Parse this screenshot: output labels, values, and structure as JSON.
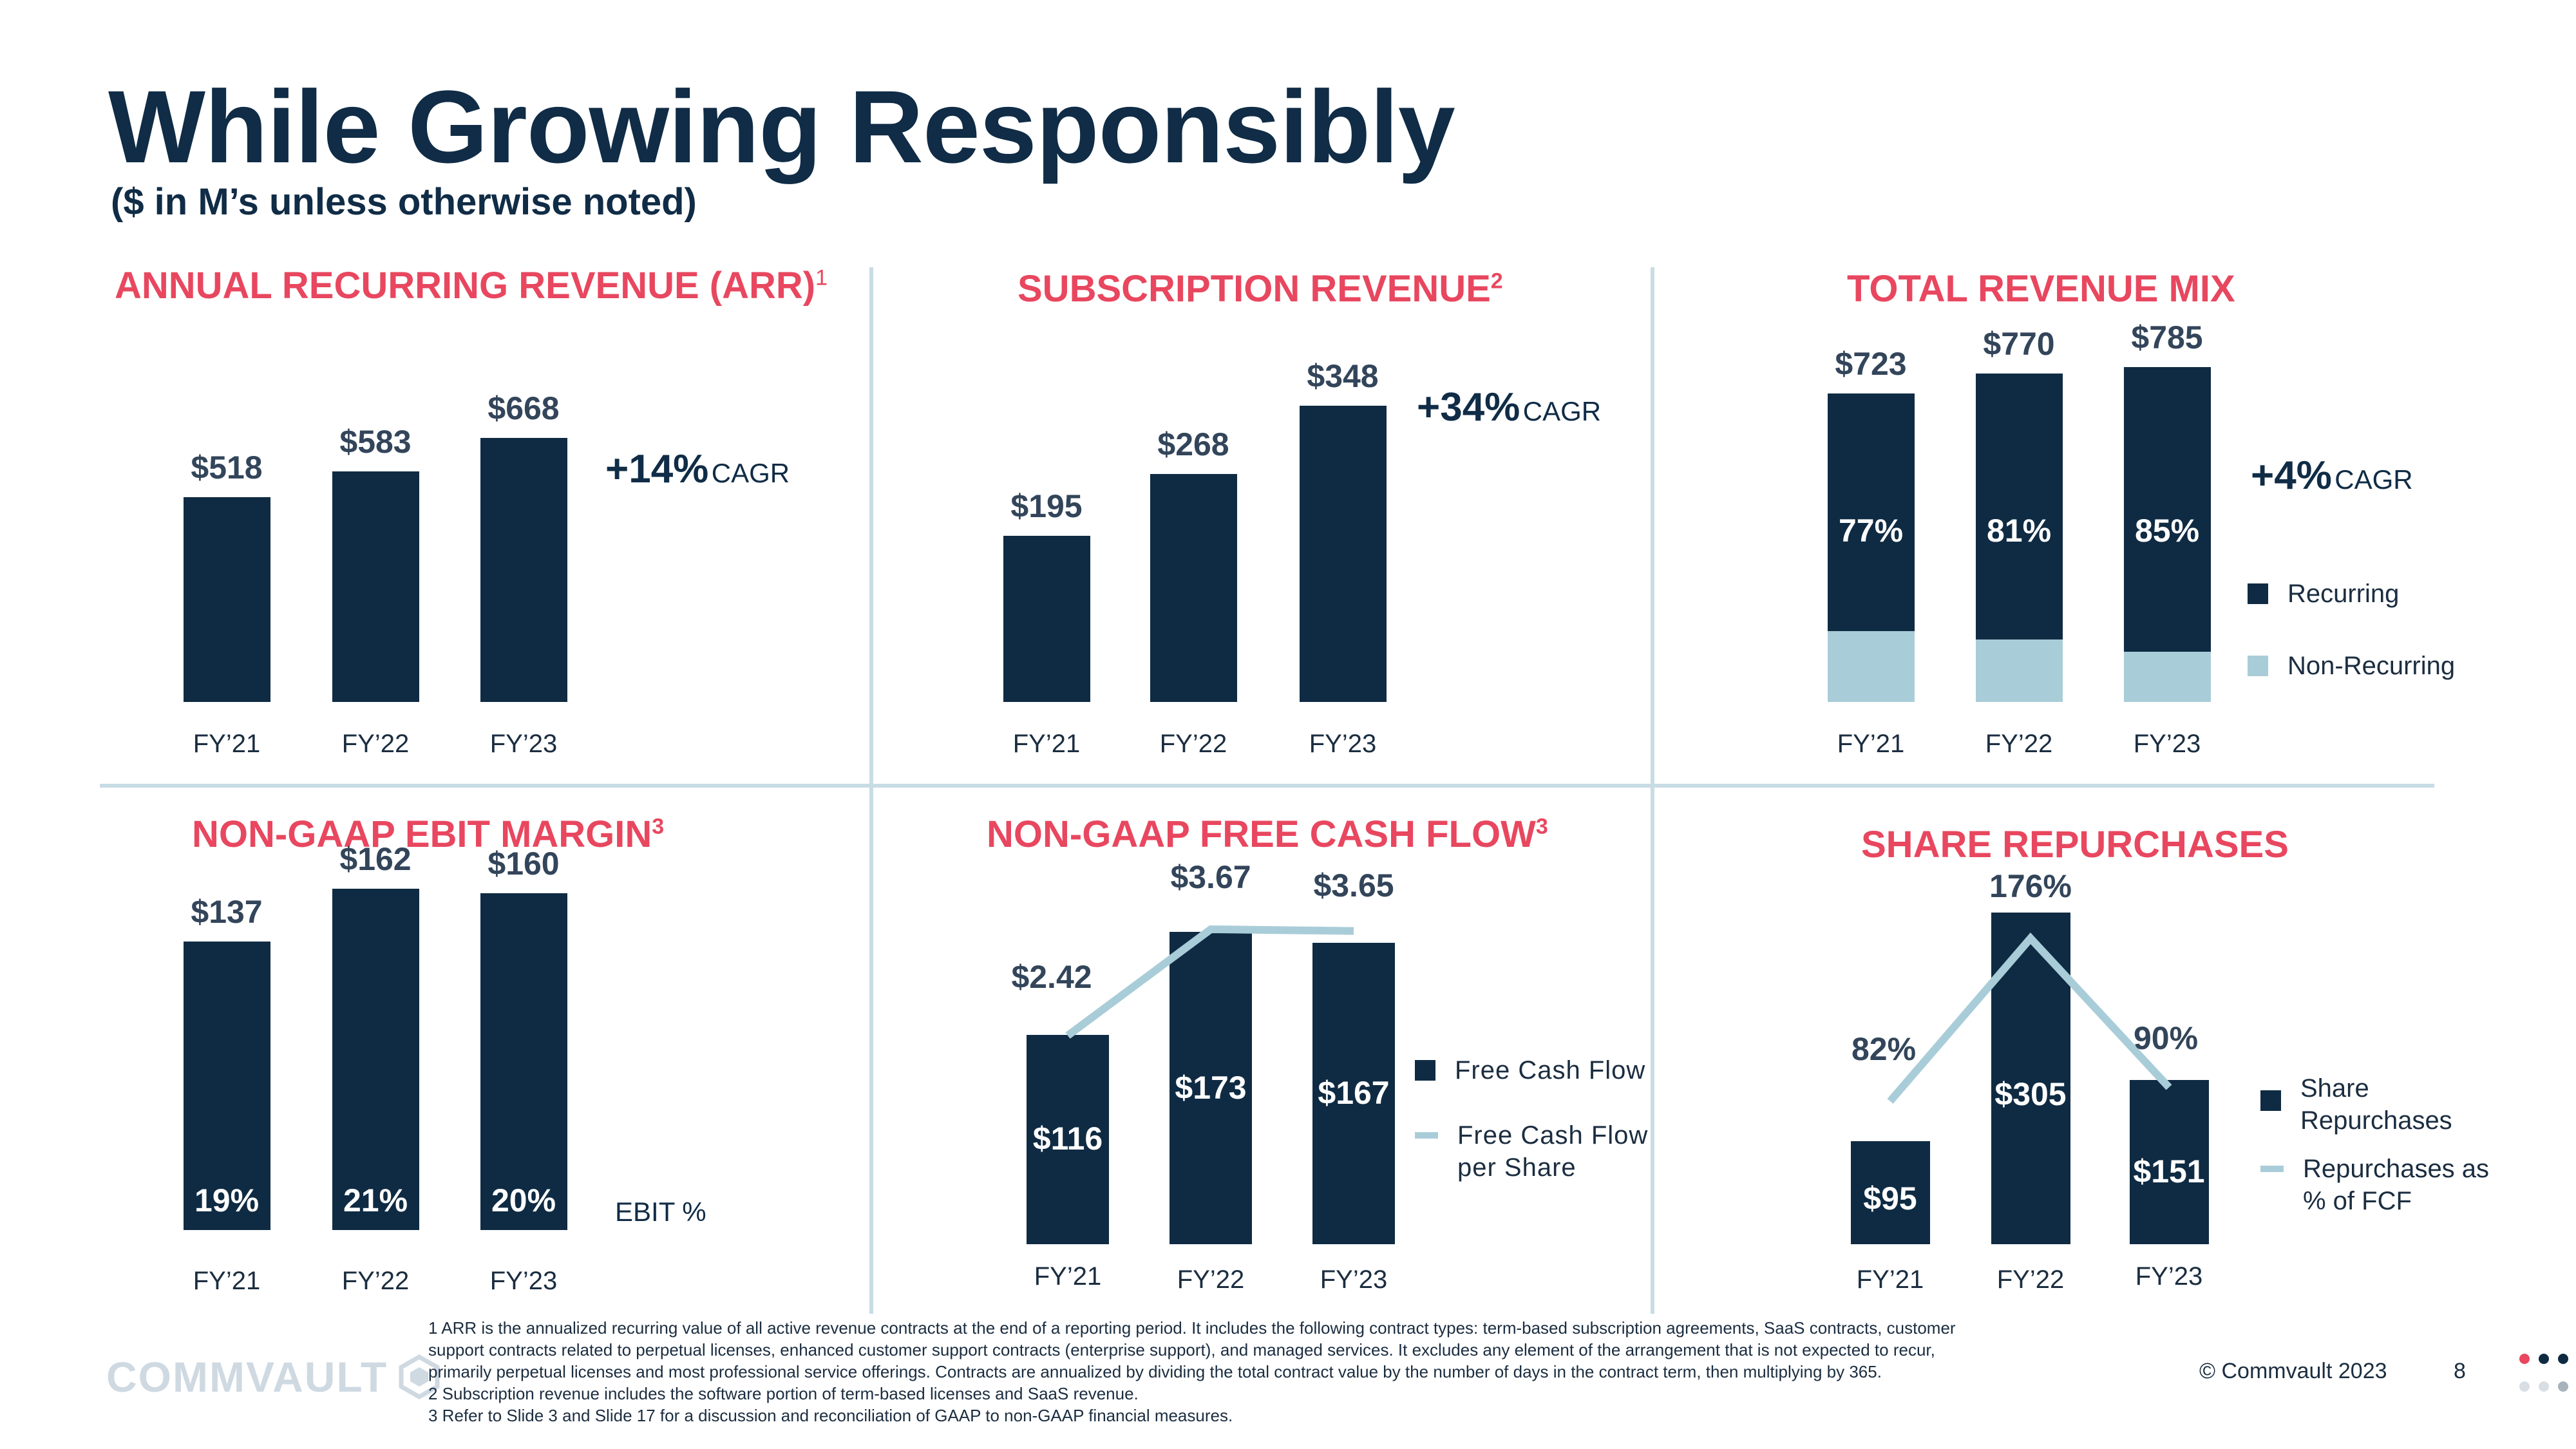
{
  "header": {
    "title": "While Growing Responsibly",
    "subtitle": "($ in M’s unless otherwise noted)"
  },
  "colors": {
    "navy": "#0f2b43",
    "pink": "#e8475f",
    "light_blue": "#a9cdd8"
  },
  "chart_data": [
    {
      "type": "bar",
      "title": "ANNUAL RECURRING REVENUE (ARR)",
      "footnote_ref": "1",
      "categories": [
        "FY’21",
        "FY’22",
        "FY’23"
      ],
      "values": [
        518,
        583,
        668
      ],
      "value_labels": [
        "$518",
        "$583",
        "$668"
      ],
      "cagr_value": "+14%",
      "cagr_label": "CAGR",
      "ylim": [
        0,
        700
      ]
    },
    {
      "type": "bar",
      "title": "SUBSCRIPTION REVENUE",
      "footnote_ref": "2",
      "categories": [
        "FY’21",
        "FY’22",
        "FY’23"
      ],
      "values": [
        195,
        268,
        348
      ],
      "value_labels": [
        "$195",
        "$268",
        "$348"
      ],
      "cagr_value": "+34%",
      "cagr_label": "CAGR",
      "ylim": [
        0,
        400
      ]
    },
    {
      "type": "bar",
      "stacked": true,
      "title": "TOTAL REVENUE MIX",
      "categories": [
        "FY’21",
        "FY’22",
        "FY’23"
      ],
      "totals": [
        723,
        770,
        785
      ],
      "total_labels": [
        "$723",
        "$770",
        "$785"
      ],
      "series": [
        {
          "name": "Recurring",
          "share": [
            0.77,
            0.81,
            0.85
          ],
          "labels": [
            "77%",
            "81%",
            "85%"
          ]
        },
        {
          "name": "Non-Recurring",
          "share": [
            0.23,
            0.19,
            0.15
          ]
        }
      ],
      "cagr_value": "+4%",
      "cagr_label": "CAGR",
      "ylim": [
        0,
        850
      ]
    },
    {
      "type": "bar",
      "title": "NON-GAAP EBIT MARGIN",
      "footnote_ref": "3",
      "categories": [
        "FY’21",
        "FY’22",
        "FY’23"
      ],
      "values": [
        137,
        162,
        160
      ],
      "value_labels": [
        "$137",
        "$162",
        "$160"
      ],
      "margin_labels": [
        "19%",
        "21%",
        "20%"
      ],
      "margin_legend": "EBIT %",
      "ylim": [
        0,
        175
      ]
    },
    {
      "type": "bar",
      "title": "NON-GAAP FREE CASH FLOW",
      "footnote_ref": "3",
      "categories": [
        "FY’21",
        "FY’22",
        "FY’23"
      ],
      "series": [
        {
          "name": "Free Cash Flow",
          "values": [
            116,
            173,
            167
          ],
          "labels": [
            "$116",
            "$173",
            "$167"
          ]
        },
        {
          "name": "Free Cash Flow per Share",
          "type": "line",
          "values": [
            2.42,
            3.67,
            3.65
          ],
          "labels": [
            "$2.42",
            "$3.67",
            "$3.65"
          ]
        }
      ],
      "ylim": [
        0,
        190
      ]
    },
    {
      "type": "bar",
      "title": "SHARE REPURCHASES",
      "categories": [
        "FY’21",
        "FY’22",
        "FY’23"
      ],
      "series": [
        {
          "name": "Share Repurchases",
          "values": [
            95,
            305,
            151
          ],
          "labels": [
            "$95",
            "$305",
            "$151"
          ]
        },
        {
          "name": "Repurchases as % of FCF",
          "type": "line",
          "values": [
            82,
            176,
            90
          ],
          "labels": [
            "82%",
            "176%",
            "90%"
          ]
        }
      ],
      "ylim": [
        0,
        330
      ]
    }
  ],
  "legends": {
    "mix": [
      "Recurring",
      "Non-Recurring"
    ],
    "fcf": [
      "Free Cash Flow",
      "Free Cash Flow per Share"
    ],
    "repurchase": [
      "Share Repurchases",
      "Repurchases as % of FCF"
    ]
  },
  "footnotes": [
    "1 ARR is the annualized recurring value of all active revenue contracts at the end of a reporting period.  It includes the following contract types: term-based subscription agreements, SaaS contracts, customer",
    "support contracts related to perpetual licenses, enhanced customer support contracts (enterprise support), and managed services.  It excludes any element of the arrangement that is not expected to recur,",
    "primarily perpetual licenses and most professional service offerings.  Contracts are annualized by dividing the total contract value by the number of days in the contract term, then multiplying by 365.",
    "2 Subscription revenue includes the software portion of term-based licenses and SaaS revenue.",
    "3 Refer to Slide 3 and Slide 17 for a discussion and reconciliation of GAAP to non-GAAP financial measures."
  ],
  "footer": {
    "logo_text": "COMMVAULT",
    "copyright": "© Commvault 2023",
    "page_number": "8"
  }
}
